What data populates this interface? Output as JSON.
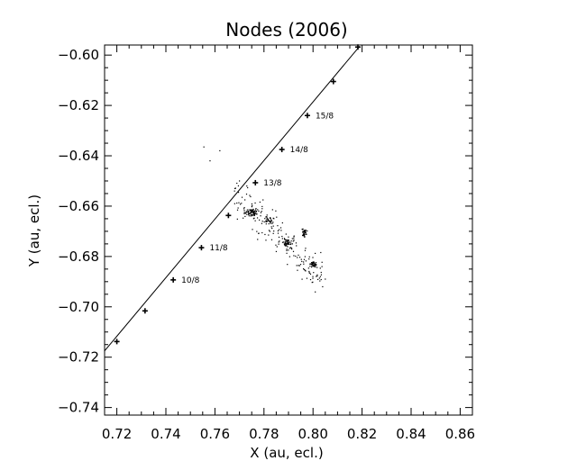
{
  "chart_data": {
    "type": "scatter",
    "title": "Nodes (2006)",
    "xlabel": "X (au, ecl.)",
    "ylabel": "Y (au, ecl.)",
    "xlim": [
      0.715,
      0.865
    ],
    "ylim": [
      -0.743,
      -0.596
    ],
    "grid": false,
    "x_ticks": [
      0.72,
      0.74,
      0.76,
      0.78,
      0.8,
      0.82,
      0.84,
      0.86
    ],
    "y_ticks": [
      -0.74,
      -0.72,
      -0.7,
      -0.68,
      -0.66,
      -0.64,
      -0.62,
      -0.6
    ],
    "x_tick_labels": [
      "0.72",
      "0.74",
      "0.76",
      "0.78",
      "0.80",
      "0.82",
      "0.84",
      "0.86"
    ],
    "y_tick_labels": [
      "−0.74",
      "−0.72",
      "−0.70",
      "−0.68",
      "−0.66",
      "−0.64",
      "−0.62",
      "−0.60"
    ],
    "orbit_line": {
      "x": [
        0.715,
        0.819
      ],
      "y": [
        -0.7175,
        -0.5965
      ]
    },
    "date_markers": [
      {
        "x": 0.72,
        "y": -0.7138,
        "label": ""
      },
      {
        "x": 0.7315,
        "y": -0.7016,
        "label": ""
      },
      {
        "x": 0.743,
        "y": -0.6893,
        "label": "10/8"
      },
      {
        "x": 0.7545,
        "y": -0.6765,
        "label": "11/8"
      },
      {
        "x": 0.7655,
        "y": -0.6637,
        "label": ""
      },
      {
        "x": 0.7765,
        "y": -0.6507,
        "label": "13/8"
      },
      {
        "x": 0.7873,
        "y": -0.6375,
        "label": "14/8"
      },
      {
        "x": 0.7977,
        "y": -0.624,
        "label": "15/8"
      },
      {
        "x": 0.8083,
        "y": -0.6105,
        "label": ""
      },
      {
        "x": 0.8183,
        "y": -0.5968,
        "label": ""
      }
    ],
    "node_clusters": [
      {
        "x": 0.775,
        "y": -0.6625,
        "count": 70,
        "sx": 0.0024,
        "sy": 0.0014
      },
      {
        "x": 0.7895,
        "y": -0.6745,
        "count": 45,
        "sx": 0.0016,
        "sy": 0.0014
      },
      {
        "x": 0.7965,
        "y": -0.6705,
        "count": 40,
        "sx": 0.0008,
        "sy": 0.0013
      },
      {
        "x": 0.8,
        "y": -0.6832,
        "count": 40,
        "sx": 0.0012,
        "sy": 0.0008
      },
      {
        "x": 0.7815,
        "y": -0.666,
        "count": 30,
        "sx": 0.002,
        "sy": 0.0017
      }
    ],
    "node_scatter": {
      "x_range": [
        0.768,
        0.804
      ],
      "y_center_at": [
        [
          0.768,
          -0.656
        ],
        [
          0.804,
          -0.688
        ]
      ],
      "count": 170,
      "spread": 0.0085
    },
    "outliers": [
      {
        "x": 0.7555,
        "y": -0.6365
      },
      {
        "x": 0.762,
        "y": -0.638
      },
      {
        "x": 0.758,
        "y": -0.642
      },
      {
        "x": 0.77,
        "y": -0.65
      },
      {
        "x": 0.768,
        "y": -0.654
      },
      {
        "x": 0.773,
        "y": -0.652
      },
      {
        "x": 0.803,
        "y": -0.688
      },
      {
        "x": 0.799,
        "y": -0.687
      },
      {
        "x": 0.805,
        "y": -0.689
      }
    ]
  }
}
